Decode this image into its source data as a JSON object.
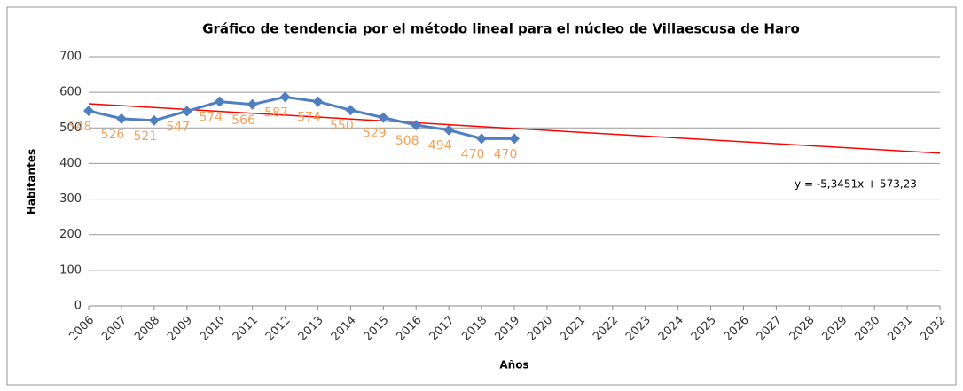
{
  "chart_data": {
    "type": "line",
    "title": "Gráfico de tendencia por el método lineal para el núcleo de Villaescusa de Haro",
    "xlabel": "Años",
    "ylabel": "Habitantes",
    "categories": [
      "2006",
      "2007",
      "2008",
      "2009",
      "2010",
      "2011",
      "2012",
      "2013",
      "2014",
      "2015",
      "2016",
      "2017",
      "2018",
      "2019",
      "2020",
      "2021",
      "2022",
      "2023",
      "2024",
      "2025",
      "2026",
      "2027",
      "2028",
      "2029",
      "2030",
      "2031",
      "2032"
    ],
    "series": [
      {
        "color": "#4f7fc0",
        "values": [
          548,
          526,
          521,
          547,
          574,
          566,
          587,
          574,
          550,
          529,
          508,
          494,
          470,
          470,
          null,
          null,
          null,
          null,
          null,
          null,
          null,
          null,
          null,
          null,
          null,
          null,
          null
        ]
      }
    ],
    "label_color": "#f4a15a",
    "trend": {
      "label": "y = -5,3451x + 573,23",
      "color": "#ff0000",
      "values": [
        568,
        429
      ]
    },
    "ylim": [
      0,
      700
    ],
    "yticks": [
      0,
      100,
      200,
      300,
      400,
      500,
      600,
      700
    ],
    "grid": true
  }
}
